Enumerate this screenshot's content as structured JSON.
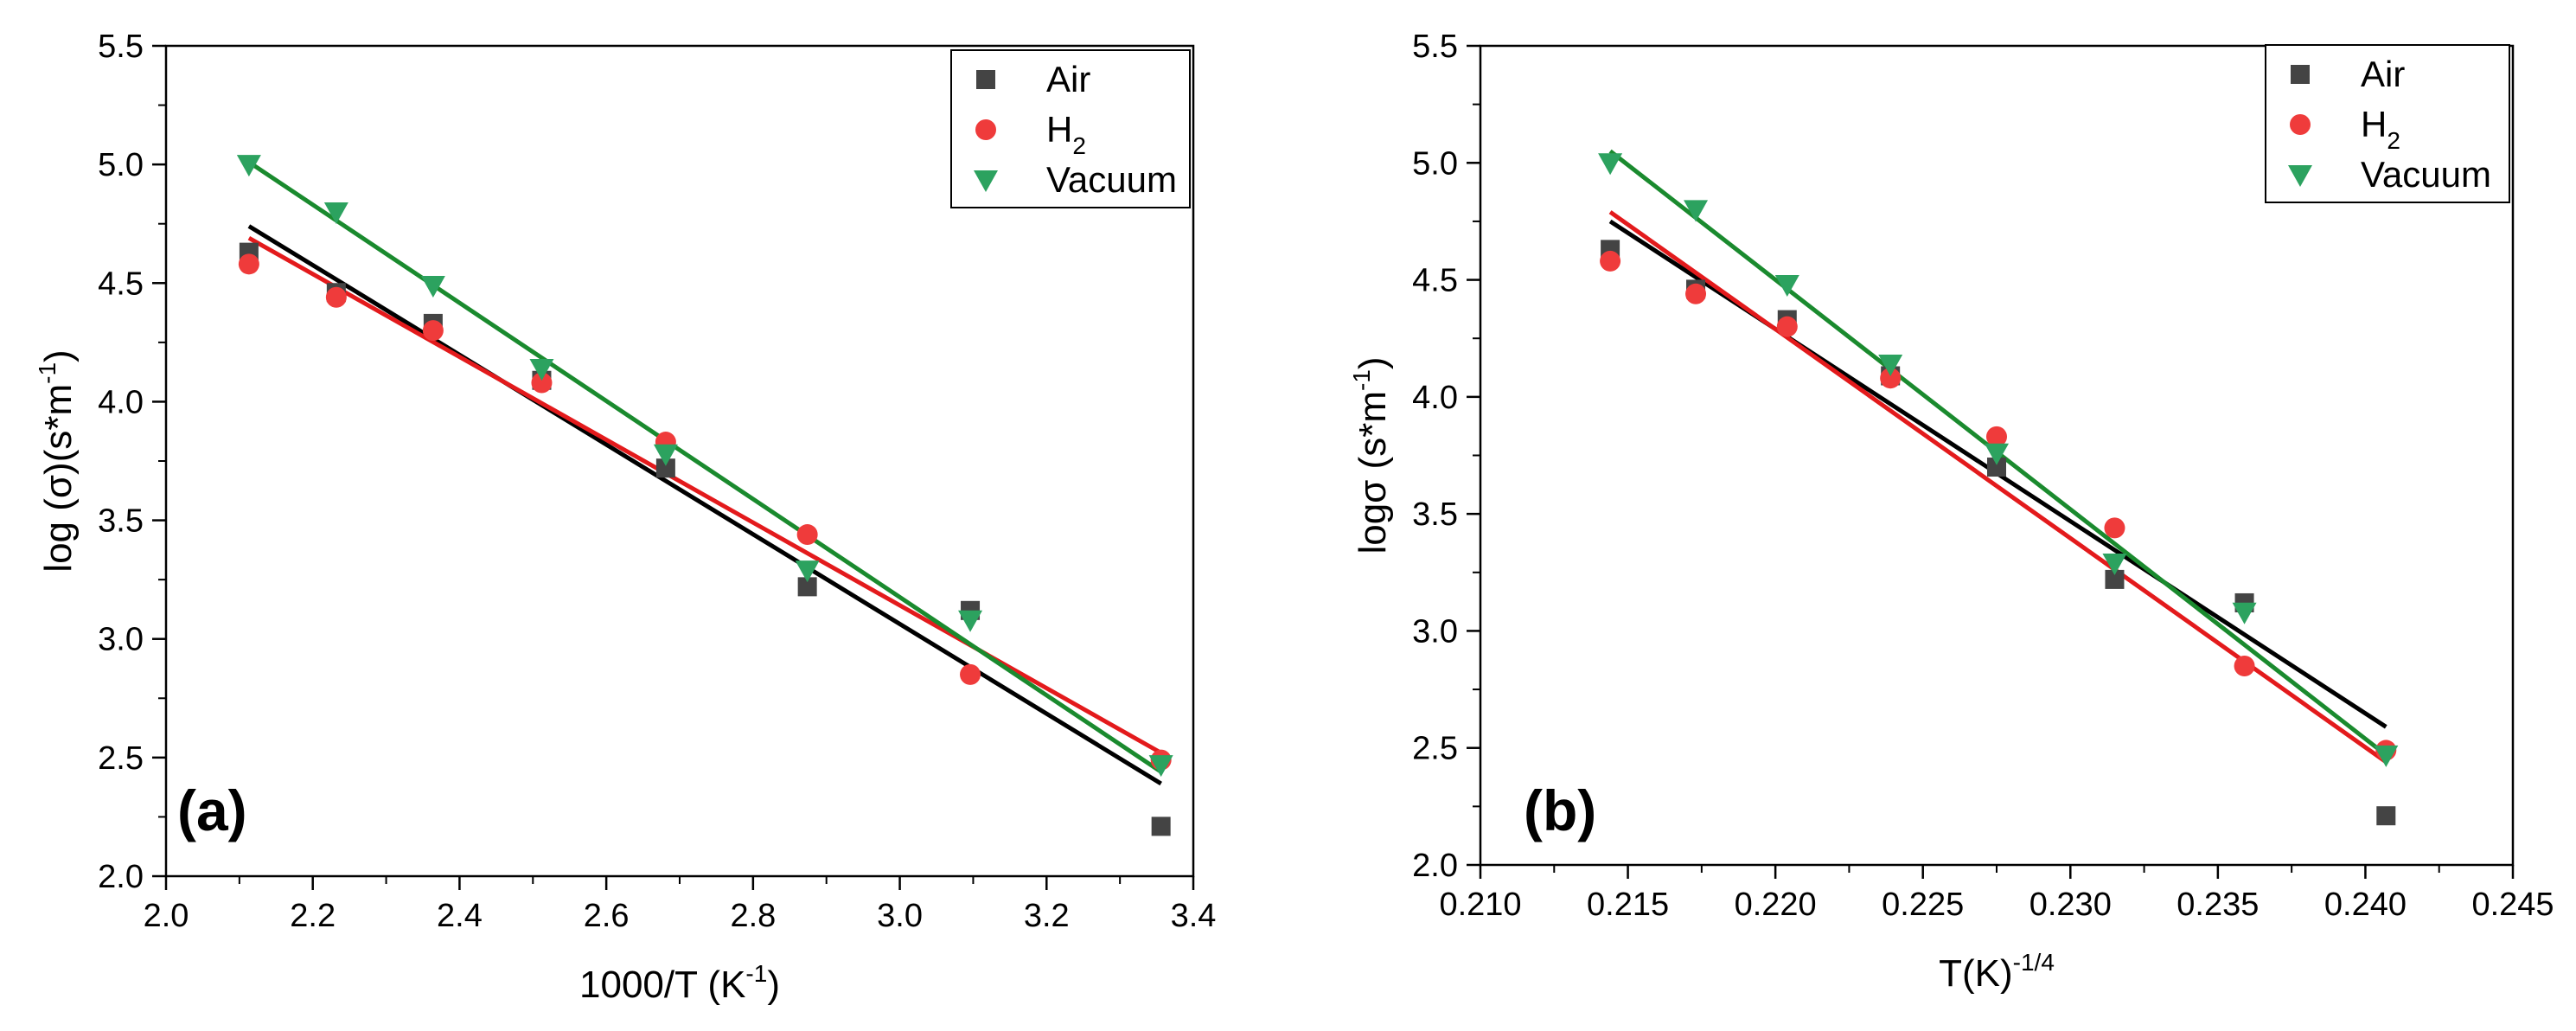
{
  "chart_data": [
    {
      "type": "scatter",
      "panel_label": "(a)",
      "xlabel": "1000/T (K",
      "xlabel_sup": "-1",
      "xlabel_end": ")",
      "ylabel": "log (σ)(s*m",
      "ylabel_sup": "-1",
      "ylabel_end": ")",
      "xlim": [
        2.0,
        3.4
      ],
      "ylim": [
        2.0,
        5.5
      ],
      "xticks": [
        "2.0",
        "2.2",
        "2.4",
        "2.6",
        "2.8",
        "3.0",
        "3.2",
        "3.4"
      ],
      "yticks": [
        "2.0",
        "2.5",
        "3.0",
        "3.5",
        "4.0",
        "4.5",
        "5.0",
        "5.5"
      ],
      "legend_position": "top-right",
      "series": [
        {
          "name": "Air",
          "marker": "square",
          "color": "#444444",
          "x": [
            2.113,
            2.232,
            2.364,
            2.512,
            2.681,
            2.874,
            3.096,
            3.356
          ],
          "y": [
            4.63,
            4.46,
            4.33,
            4.09,
            3.72,
            3.22,
            3.12,
            2.21
          ],
          "fit": [
            [
              2.113,
              4.74
            ],
            [
              3.356,
              2.39
            ]
          ],
          "fit_color": "#000000"
        },
        {
          "name": "H",
          "name_sub": "2",
          "marker": "circle",
          "color": "#ef3b3b",
          "x": [
            2.113,
            2.232,
            2.364,
            2.512,
            2.681,
            2.874,
            3.096,
            3.356
          ],
          "y": [
            4.58,
            4.44,
            4.3,
            4.08,
            3.83,
            3.44,
            2.85,
            2.49
          ],
          "fit": [
            [
              2.113,
              4.69
            ],
            [
              3.356,
              2.52
            ]
          ],
          "fit_color": "#e31a1c"
        },
        {
          "name": "Vacuum",
          "marker": "triangle-down",
          "color": "#2ca25f",
          "x": [
            2.113,
            2.232,
            2.364,
            2.512,
            2.681,
            2.874,
            3.096,
            3.356
          ],
          "y": [
            5.0,
            4.8,
            4.49,
            4.14,
            3.78,
            3.29,
            3.08,
            2.47
          ],
          "fit": [
            [
              2.113,
              5.01
            ],
            [
              3.356,
              2.44
            ]
          ],
          "fit_color": "#1a8a2e"
        }
      ]
    },
    {
      "type": "scatter",
      "panel_label": "(b)",
      "xlabel": "T(K)",
      "xlabel_sup": "-1/4",
      "xlabel_end": "",
      "ylabel": "logσ (s*m",
      "ylabel_sup": "-1",
      "ylabel_end": ")",
      "xlim": [
        0.21,
        0.245
      ],
      "ylim": [
        2.0,
        5.5
      ],
      "xticks": [
        "0.210",
        "0.215",
        "0.220",
        "0.225",
        "0.230",
        "0.235",
        "0.240",
        "0.245"
      ],
      "yticks": [
        "2.0",
        "2.5",
        "3.0",
        "3.5",
        "4.0",
        "4.5",
        "5.0",
        "5.5"
      ],
      "legend_position": "top-right",
      "series": [
        {
          "name": "Air",
          "marker": "square",
          "color": "#444444",
          "x": [
            0.2144,
            0.2173,
            0.2204,
            0.2239,
            0.2275,
            0.2315,
            0.2359,
            0.2407
          ],
          "y": [
            4.63,
            4.46,
            4.33,
            4.09,
            3.7,
            3.22,
            3.12,
            2.21
          ],
          "fit": [
            [
              0.2144,
              4.75
            ],
            [
              0.2407,
              2.59
            ]
          ],
          "fit_color": "#000000"
        },
        {
          "name": "H",
          "name_sub": "2",
          "marker": "circle",
          "color": "#ef3b3b",
          "x": [
            0.2144,
            0.2173,
            0.2204,
            0.2239,
            0.2275,
            0.2315,
            0.2359,
            0.2407
          ],
          "y": [
            4.58,
            4.44,
            4.3,
            4.08,
            3.83,
            3.44,
            2.85,
            2.49
          ],
          "fit": [
            [
              0.2144,
              4.79
            ],
            [
              0.2407,
              2.44
            ]
          ],
          "fit_color": "#e31a1c"
        },
        {
          "name": "Vacuum",
          "marker": "triangle-down",
          "color": "#2ca25f",
          "x": [
            0.2144,
            0.2173,
            0.2204,
            0.2239,
            0.2275,
            0.2315,
            0.2359,
            0.2407
          ],
          "y": [
            5.0,
            4.8,
            4.48,
            4.14,
            3.76,
            3.29,
            3.08,
            2.47
          ],
          "fit": [
            [
              0.2144,
              5.05
            ],
            [
              0.2407,
              2.47
            ]
          ],
          "fit_color": "#1a8a2e"
        }
      ]
    }
  ]
}
